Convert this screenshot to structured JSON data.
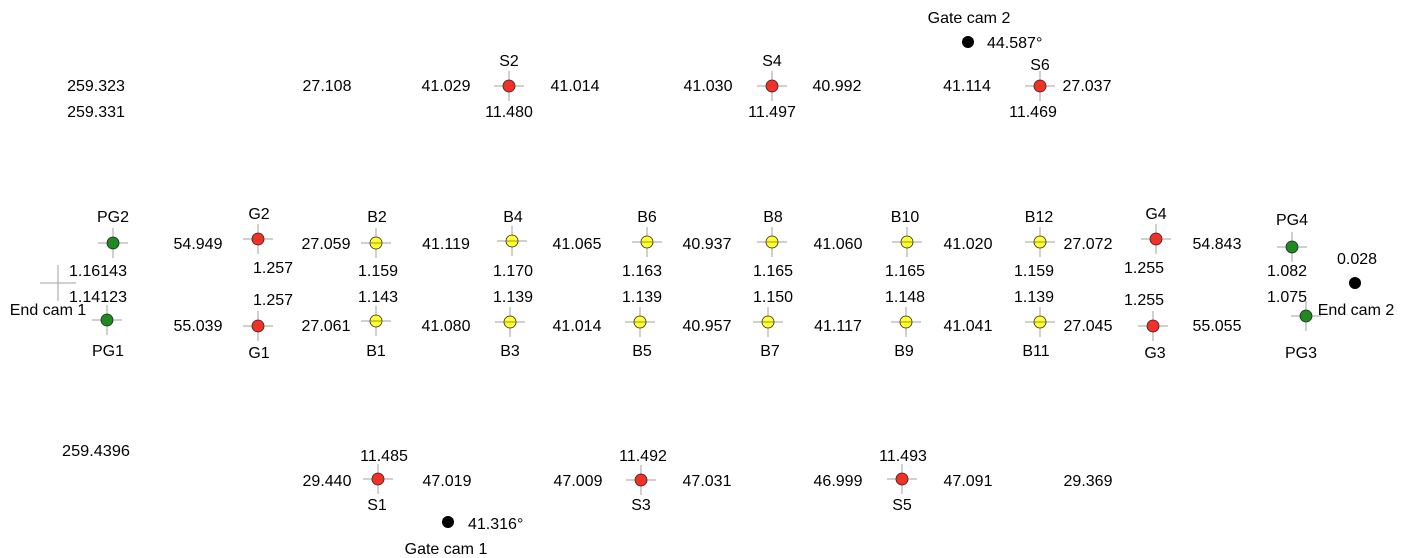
{
  "colors": {
    "ball_fill": "#ffff33",
    "guide_fill": "#ff2b2b",
    "pin_fill": "#1f8a1f",
    "cam_fill": "#000000",
    "crosshair": "#a0a0a0",
    "stroke": "#222222"
  },
  "corner_values": {
    "top_left_1": "259.323",
    "top_left_2": "259.331",
    "bottom_left": "259.4396",
    "top_span": "27.108",
    "bottom_span": "29.369",
    "cam2_value": "0.028"
  },
  "cameras": [
    {
      "id": "gatecam2",
      "label": "Gate cam 2",
      "value": "44.587°"
    },
    {
      "id": "gatecam1",
      "label": "Gate cam 1",
      "value": "41.316°"
    },
    {
      "id": "endcam1",
      "label": "End cam 1"
    },
    {
      "id": "endcam2",
      "label": "End cam 2"
    }
  ],
  "points": [
    {
      "id": "s2",
      "kind": "guide",
      "label": "S2",
      "value": "11.480"
    },
    {
      "id": "s4",
      "kind": "guide",
      "label": "S4",
      "value": "11.497"
    },
    {
      "id": "s6",
      "kind": "guide",
      "label": "S6",
      "value": "11.469"
    },
    {
      "id": "pg2",
      "kind": "pin",
      "label": "PG2",
      "value": "1.16143"
    },
    {
      "id": "pg1",
      "kind": "pin",
      "label": "PG1",
      "value": "1.14123"
    },
    {
      "id": "g2",
      "kind": "guide",
      "label": "G2",
      "value": "1.257"
    },
    {
      "id": "g1",
      "kind": "guide",
      "label": "G1",
      "value": "1.257"
    },
    {
      "id": "b2",
      "kind": "ball",
      "label": "B2",
      "value": "1.159"
    },
    {
      "id": "b1",
      "kind": "ball",
      "label": "B1",
      "value": "1.143"
    },
    {
      "id": "b4",
      "kind": "ball",
      "label": "B4",
      "value": "1.170"
    },
    {
      "id": "b3",
      "kind": "ball",
      "label": "B3",
      "value": "1.139"
    },
    {
      "id": "b6",
      "kind": "ball",
      "label": "B6",
      "value": "1.163"
    },
    {
      "id": "b5",
      "kind": "ball",
      "label": "B5",
      "value": "1.139"
    },
    {
      "id": "b8",
      "kind": "ball",
      "label": "B8",
      "value": "1.165"
    },
    {
      "id": "b7",
      "kind": "ball",
      "label": "B7",
      "value": "1.150"
    },
    {
      "id": "b10",
      "kind": "ball",
      "label": "B10",
      "value": "1.165"
    },
    {
      "id": "b9",
      "kind": "ball",
      "label": "B9",
      "value": "1.148"
    },
    {
      "id": "b12",
      "kind": "ball",
      "label": "B12",
      "value": "1.159"
    },
    {
      "id": "b11",
      "kind": "ball",
      "label": "B11",
      "value": "1.139"
    },
    {
      "id": "g4",
      "kind": "guide",
      "label": "G4",
      "value": "1.255"
    },
    {
      "id": "g3",
      "kind": "guide",
      "label": "G3",
      "value": "1.255"
    },
    {
      "id": "pg4",
      "kind": "pin",
      "label": "PG4",
      "value": "1.082"
    },
    {
      "id": "pg3",
      "kind": "pin",
      "label": "PG3",
      "value": "1.075"
    },
    {
      "id": "s1",
      "kind": "guide",
      "label": "S1",
      "value": "11.485"
    },
    {
      "id": "s3",
      "kind": "guide",
      "label": "S3",
      "value": "11.492"
    },
    {
      "id": "s5",
      "kind": "guide",
      "label": "S5",
      "value": "11.493"
    }
  ],
  "distances": {
    "s2_left": "41.029",
    "s2_right": "41.014",
    "s4_left": "41.030",
    "s4_right": "40.992",
    "s6_left": "41.114",
    "s6_right": "27.037",
    "top_pg2_g2": "54.949",
    "top_g2_b2": "27.059",
    "top_b2_b4": "41.119",
    "top_b4_b6": "41.065",
    "top_b6_b8": "40.937",
    "top_b8_b10": "41.060",
    "top_b10_b12": "41.020",
    "top_b12_g4": "27.072",
    "top_g4_pg4": "54.843",
    "bot_pg1_g1": "55.039",
    "bot_g1_b1": "27.061",
    "bot_b1_b3": "41.080",
    "bot_b3_b5": "41.014",
    "bot_b5_b7": "40.957",
    "bot_b7_b9": "41.117",
    "bot_b9_b11": "41.041",
    "bot_b11_g3": "27.045",
    "bot_g3_pg3": "55.055",
    "s1_left": "29.440",
    "s1_right": "47.019",
    "s3_left": "47.009",
    "s3_right": "47.031",
    "s5_left": "46.999",
    "s5_right": "47.091"
  }
}
